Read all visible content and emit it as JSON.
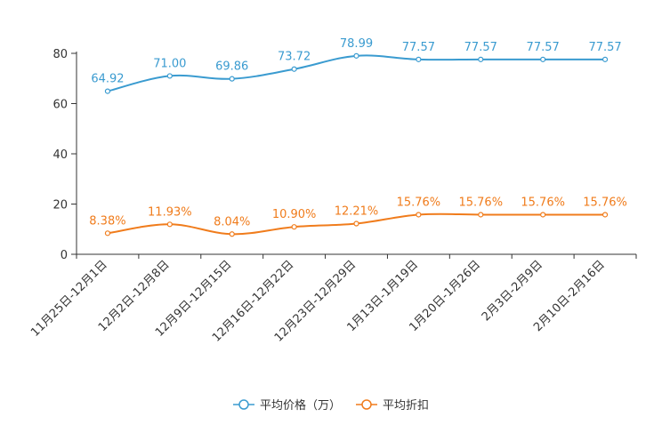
{
  "chart_data": {
    "type": "line",
    "categories": [
      "11月25日-12月1日",
      "12月2日-12月8日",
      "12月9日-12月15日",
      "12月16日-12月22日",
      "12月23日-12月29日",
      "1月13日-1月19日",
      "1月20日-1月26日",
      "2月3日-2月9日",
      "2月10日-2月16日"
    ],
    "ylim": [
      0,
      80
    ],
    "yticks": [
      0,
      20,
      40,
      60,
      80
    ],
    "series": [
      {
        "name": "平均价格（万）",
        "color": "#3a9bd0",
        "values": [
          64.92,
          71.0,
          69.86,
          73.72,
          78.99,
          77.57,
          77.57,
          77.57,
          77.57
        ],
        "labels": [
          "64.92",
          "71.00",
          "69.86",
          "73.72",
          "78.99",
          "77.57",
          "77.57",
          "77.57",
          "77.57"
        ]
      },
      {
        "name": "平均折扣",
        "color": "#f07c1c",
        "values": [
          8.38,
          11.93,
          8.04,
          10.9,
          12.21,
          15.76,
          15.76,
          15.76,
          15.76
        ],
        "labels": [
          "8.38%",
          "11.93%",
          "8.04%",
          "10.90%",
          "12.21%",
          "15.76%",
          "15.76%",
          "15.76%",
          "15.76%"
        ]
      }
    ],
    "legend_position": "bottom-center",
    "grid": false
  }
}
